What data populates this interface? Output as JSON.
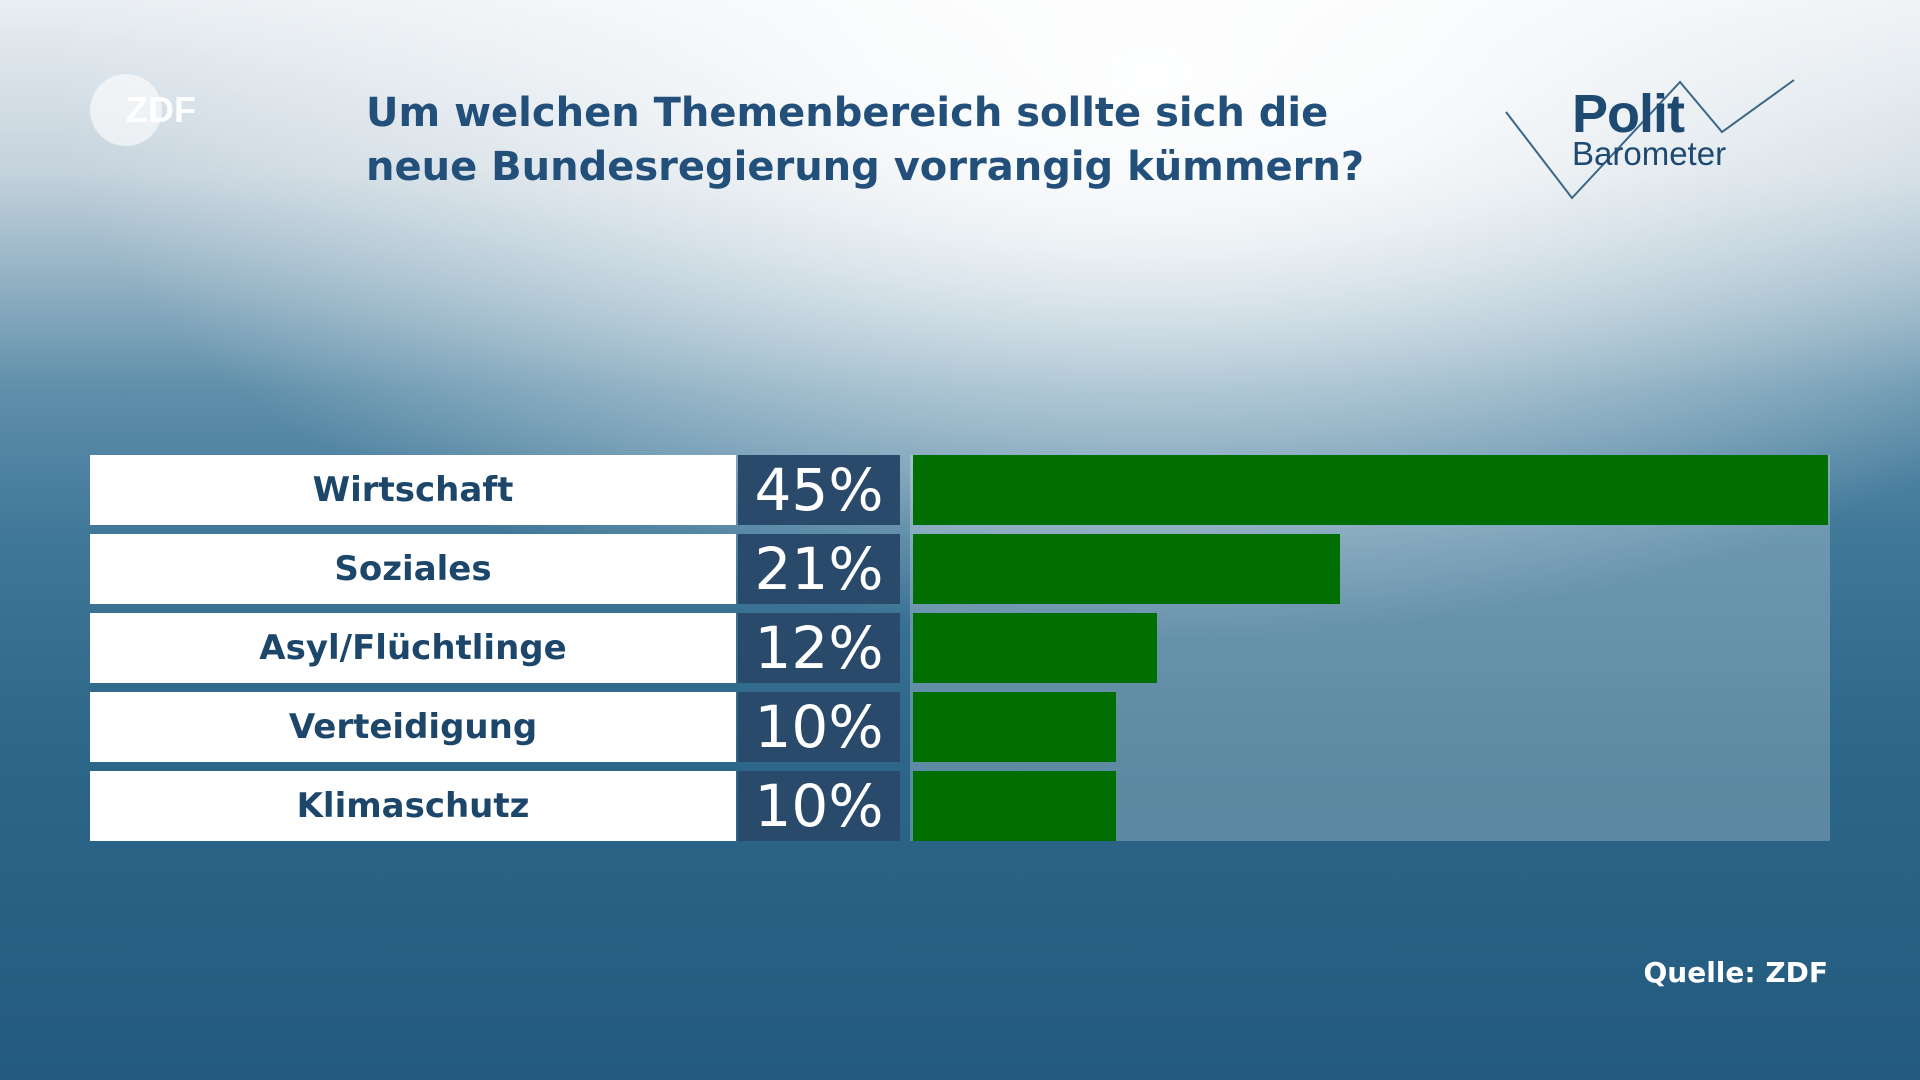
{
  "header": {
    "title": "Um welchen Themenbereich sollte sich die neue Bundesregierung vorrangig kümmern?"
  },
  "logos": {
    "broadcaster": "ZDF",
    "program_line1": "Polit",
    "program_line2": "Barometer"
  },
  "source": "Quelle: ZDF",
  "colors": {
    "bar": "#006e00",
    "value_box": "#2a4a6b",
    "title": "#22507a"
  },
  "chart_data": {
    "type": "bar",
    "orientation": "horizontal",
    "title": "Um welchen Themenbereich sollte sich die neue Bundesregierung vorrangig kümmern?",
    "categories": [
      "Wirtschaft",
      "Soziales",
      "Asyl/Flüchtlinge",
      "Verteidigung",
      "Klimaschutz"
    ],
    "values": [
      45,
      21,
      12,
      10,
      10
    ],
    "value_labels": [
      "45%",
      "21%",
      "12%",
      "10%",
      "10%"
    ],
    "unit": "%",
    "xlim": [
      0,
      45
    ],
    "grid": false
  }
}
